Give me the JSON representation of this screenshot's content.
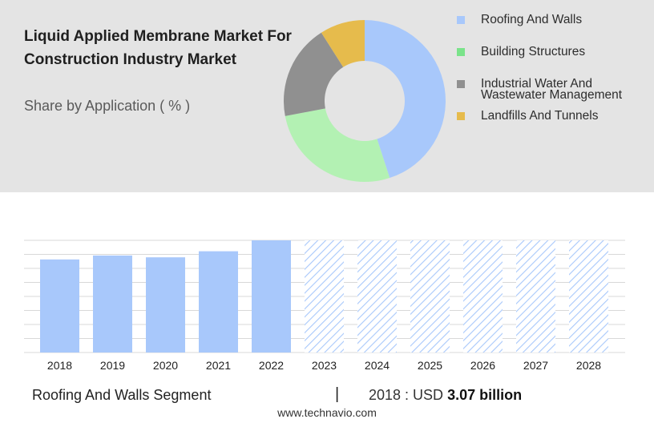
{
  "header": {
    "title": "Liquid Applied Membrane Market For Construction Industry Market",
    "subtitle": "Share by Application ( % )"
  },
  "chart_data": [
    {
      "type": "pie",
      "style": "donut",
      "labels": [
        "Roofing And Walls",
        "Building Structures",
        "Industrial Water And Wastewater Management",
        "Landfills And Tunnels"
      ],
      "values": [
        45,
        27,
        19,
        9
      ],
      "colors": [
        "#a8c8fb",
        "#b3f1b3",
        "#909090",
        "#e6bb4c"
      ],
      "legend_swatch_colors": [
        "#a8c8fb",
        "#7ae38a",
        "#909090",
        "#e6bb4c"
      ],
      "legend_position": "right"
    },
    {
      "type": "bar",
      "categories": [
        "2018",
        "2019",
        "2020",
        "2021",
        "2022",
        "2023",
        "2024",
        "2025",
        "2026",
        "2027",
        "2028"
      ],
      "values": [
        3.07,
        3.2,
        3.14,
        3.34,
        3.7,
        3.7,
        3.7,
        3.7,
        3.7,
        3.7,
        3.7
      ],
      "forecast_from": "2023",
      "ylim": [
        0,
        3.7
      ],
      "grid": true,
      "bar_color": "#a8c8fb"
    }
  ],
  "footer": {
    "segment": "Roofing And Walls Segment",
    "separator": "|",
    "value_prefix": "2018 : USD ",
    "value": "3.07 billion",
    "website": "www.technavio.com"
  }
}
